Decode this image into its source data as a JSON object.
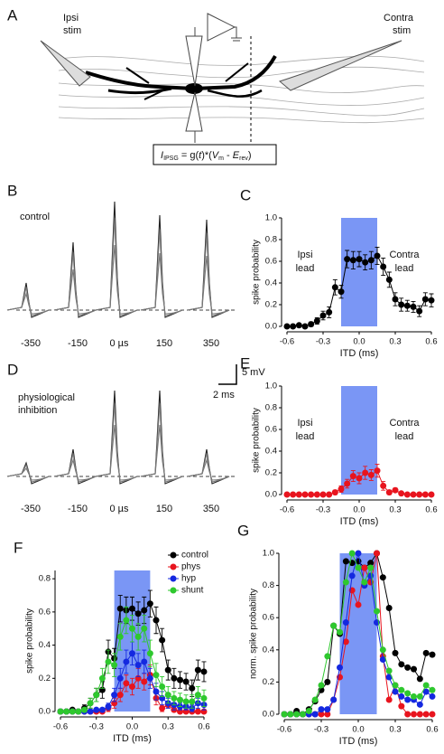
{
  "panel_a": {
    "label": "A",
    "ipsi": [
      "Ipsi",
      "stim"
    ],
    "contra": [
      "Contra",
      "stim"
    ],
    "formula": [
      "I",
      "IPSG",
      " = g(",
      "t",
      ")*(",
      "V",
      "m",
      " - ",
      "E",
      "rev",
      ")"
    ]
  },
  "panel_b": {
    "label": "B",
    "condition": [
      "control"
    ],
    "itd_labels": [
      "-350",
      "-150",
      "0 µs",
      "150",
      "350"
    ]
  },
  "panel_d": {
    "label": "D",
    "condition": [
      "physiological",
      "inhibition"
    ],
    "itd_labels": [
      "-350",
      "-150",
      "0 µs",
      "150",
      "350"
    ],
    "scale_bar": [
      "5 mV",
      "2 ms"
    ]
  },
  "chart_data": [
    {
      "type": "line",
      "label": "C",
      "xlabel": "ITD (ms)",
      "ylabel": "spike probability",
      "annotations": [
        "Ipsi",
        "lead",
        "Contra",
        "lead"
      ],
      "x": [
        -0.6,
        -0.55,
        -0.5,
        -0.45,
        -0.4,
        -0.35,
        -0.3,
        -0.25,
        -0.2,
        -0.15,
        -0.1,
        -0.05,
        0,
        0.05,
        0.1,
        0.15,
        0.2,
        0.25,
        0.3,
        0.35,
        0.4,
        0.45,
        0.5,
        0.55,
        0.6
      ],
      "shaded_region": {
        "x": [
          -0.15,
          0.15
        ],
        "color": "#7a96f5"
      },
      "series": [
        {
          "color": "#000000",
          "values": [
            0,
            0,
            0.01,
            0,
            0.02,
            0.05,
            0.1,
            0.13,
            0.36,
            0.32,
            0.62,
            0.61,
            0.62,
            0.59,
            0.61,
            0.65,
            0.55,
            0.43,
            0.25,
            0.2,
            0.19,
            0.18,
            0.14,
            0.25,
            0.24
          ],
          "errors": [
            0,
            0,
            0.01,
            0,
            0.02,
            0.03,
            0.04,
            0.05,
            0.07,
            0.06,
            0.08,
            0.08,
            0.07,
            0.07,
            0.08,
            0.08,
            0.08,
            0.07,
            0.06,
            0.06,
            0.05,
            0.05,
            0.05,
            0.06,
            0.06
          ]
        }
      ],
      "xlim": [
        -0.6,
        0.6
      ],
      "ylim": [
        0,
        1
      ],
      "xticks": [
        -0.6,
        -0.3,
        {
          "value": 0,
          "label": "0.0"
        },
        0.3,
        0.6
      ],
      "yticks": [
        {
          "value": 0,
          "label": "0.0"
        },
        0.2,
        0.4,
        0.6,
        0.8,
        {
          "value": 1,
          "label": "1.0"
        }
      ]
    },
    {
      "type": "line",
      "label": "E",
      "xlabel": "ITD (ms)",
      "ylabel": "spike probability",
      "annotations": [
        "Ipsi",
        "lead",
        "Contra",
        "lead"
      ],
      "x": [
        -0.6,
        -0.55,
        -0.5,
        -0.45,
        -0.4,
        -0.35,
        -0.3,
        -0.25,
        -0.2,
        -0.15,
        -0.1,
        -0.05,
        0,
        0.05,
        0.1,
        0.15,
        0.2,
        0.25,
        0.3,
        0.35,
        0.4,
        0.45,
        0.5,
        0.55,
        0.6
      ],
      "shaded_region": {
        "x": [
          -0.15,
          0.15
        ],
        "color": "#7a96f5"
      },
      "series": [
        {
          "color": "#e8141e",
          "values": [
            0,
            0,
            0,
            0,
            0,
            0,
            0,
            0,
            0.02,
            0.05,
            0.1,
            0.17,
            0.15,
            0.2,
            0.18,
            0.22,
            0.08,
            0.02,
            0.04,
            0.01,
            0,
            0,
            0,
            0,
            0
          ],
          "errors": [
            0,
            0,
            0,
            0,
            0,
            0,
            0,
            0,
            0.02,
            0.03,
            0.04,
            0.05,
            0.05,
            0.06,
            0.05,
            0.06,
            0.04,
            0.02,
            0.02,
            0.01,
            0,
            0,
            0,
            0,
            0
          ]
        }
      ],
      "xlim": [
        -0.6,
        0.6
      ],
      "ylim": [
        0,
        1
      ],
      "xticks": [
        -0.6,
        -0.3,
        {
          "value": 0,
          "label": "0.0"
        },
        0.3,
        0.6
      ],
      "yticks": [
        {
          "value": 0,
          "label": "0.0"
        },
        0.2,
        0.4,
        0.6,
        0.8,
        {
          "value": 1,
          "label": "1.0"
        }
      ]
    },
    {
      "type": "line",
      "label": "F",
      "xlabel": "ITD (ms)",
      "ylabel": "spike probability",
      "legend": "upper right",
      "x": [
        -0.6,
        -0.55,
        -0.5,
        -0.45,
        -0.4,
        -0.35,
        -0.3,
        -0.25,
        -0.2,
        -0.15,
        -0.1,
        -0.05,
        0,
        0.05,
        0.1,
        0.15,
        0.2,
        0.25,
        0.3,
        0.35,
        0.4,
        0.45,
        0.5,
        0.55,
        0.6
      ],
      "shaded_region": {
        "x": [
          -0.15,
          0.15
        ],
        "color": "#7a96f5"
      },
      "series": [
        {
          "name": "control",
          "color": "#000000",
          "values": [
            0,
            0,
            0.01,
            0,
            0.02,
            0.05,
            0.1,
            0.13,
            0.36,
            0.32,
            0.62,
            0.61,
            0.62,
            0.59,
            0.61,
            0.65,
            0.55,
            0.43,
            0.25,
            0.2,
            0.19,
            0.18,
            0.14,
            0.25,
            0.24
          ],
          "errors": [
            0,
            0,
            0.01,
            0,
            0.02,
            0.03,
            0.04,
            0.05,
            0.07,
            0.06,
            0.08,
            0.08,
            0.07,
            0.07,
            0.08,
            0.08,
            0.08,
            0.07,
            0.06,
            0.06,
            0.05,
            0.05,
            0.05,
            0.06,
            0.06
          ]
        },
        {
          "name": "phys",
          "color": "#e8141e",
          "values": [
            0,
            0,
            0,
            0,
            0,
            0,
            0,
            0,
            0.02,
            0.05,
            0.1,
            0.17,
            0.15,
            0.2,
            0.18,
            0.22,
            0.08,
            0.02,
            0.04,
            0.01,
            0,
            0,
            0,
            0,
            0
          ],
          "errors": [
            0,
            0,
            0,
            0,
            0,
            0,
            0,
            0,
            0.02,
            0.03,
            0.04,
            0.05,
            0.05,
            0.06,
            0.05,
            0.06,
            0.04,
            0.02,
            0.02,
            0.01,
            0,
            0,
            0,
            0,
            0
          ]
        },
        {
          "name": "hyp",
          "color": "#1428e0",
          "values": [
            0,
            0,
            0,
            0,
            0,
            0,
            0.01,
            0.01,
            0.03,
            0.1,
            0.2,
            0.3,
            0.35,
            0.28,
            0.3,
            0.2,
            0.12,
            0.08,
            0.05,
            0.04,
            0.03,
            0.03,
            0.02,
            0.05,
            0.04
          ],
          "errors": [
            0,
            0,
            0,
            0,
            0,
            0,
            0.01,
            0.01,
            0.02,
            0.04,
            0.06,
            0.07,
            0.07,
            0.07,
            0.07,
            0.06,
            0.05,
            0.04,
            0.03,
            0.03,
            0.02,
            0.02,
            0.02,
            0.03,
            0.03
          ]
        },
        {
          "name": "shunt",
          "color": "#2ec82e",
          "values": [
            0,
            0,
            0,
            0,
            0.01,
            0.05,
            0.1,
            0.2,
            0.3,
            0.28,
            0.45,
            0.55,
            0.5,
            0.45,
            0.5,
            0.35,
            0.22,
            0.15,
            0.1,
            0.08,
            0.07,
            0.06,
            0.06,
            0.1,
            0.08
          ],
          "errors": [
            0,
            0,
            0,
            0,
            0.01,
            0.03,
            0.04,
            0.06,
            0.07,
            0.07,
            0.08,
            0.08,
            0.08,
            0.08,
            0.08,
            0.08,
            0.07,
            0.06,
            0.05,
            0.04,
            0.04,
            0.04,
            0.04,
            0.05,
            0.05
          ]
        }
      ],
      "xlim": [
        -0.6,
        0.6
      ],
      "ylim": [
        0,
        0.85
      ],
      "xticks": [
        -0.6,
        -0.3,
        {
          "value": 0,
          "label": "0.0"
        },
        0.3,
        0.6
      ],
      "yticks": [
        {
          "value": 0,
          "label": "0.0"
        },
        0.2,
        0.4,
        0.6,
        0.8
      ]
    },
    {
      "type": "line",
      "label": "G",
      "xlabel": "ITD (ms)",
      "ylabel": "norm. spike probability",
      "x": [
        -0.6,
        -0.55,
        -0.5,
        -0.45,
        -0.4,
        -0.35,
        -0.3,
        -0.25,
        -0.2,
        -0.15,
        -0.1,
        -0.05,
        0,
        0.05,
        0.1,
        0.15,
        0.2,
        0.25,
        0.3,
        0.35,
        0.4,
        0.45,
        0.5,
        0.55,
        0.6
      ],
      "shaded_region": {
        "x": [
          -0.15,
          0.15
        ],
        "color": "#7a96f5"
      },
      "series": [
        {
          "color": "#000000",
          "values": [
            0,
            0,
            0.02,
            0,
            0.03,
            0.08,
            0.15,
            0.2,
            0.55,
            0.5,
            0.95,
            0.94,
            0.95,
            0.91,
            0.94,
            1.0,
            0.85,
            0.66,
            0.38,
            0.31,
            0.29,
            0.28,
            0.22,
            0.38,
            0.37
          ]
        },
        {
          "color": "#e8141e",
          "values": [
            0,
            0,
            0,
            0,
            0,
            0,
            0,
            0,
            0.09,
            0.23,
            0.45,
            0.77,
            0.68,
            0.91,
            0.82,
            1.0,
            0.36,
            0.09,
            0.18,
            0.05,
            0,
            0,
            0,
            0,
            0
          ]
        },
        {
          "color": "#1428e0",
          "values": [
            0,
            0,
            0,
            0,
            0,
            0,
            0.03,
            0.03,
            0.09,
            0.29,
            0.57,
            0.86,
            1.0,
            0.8,
            0.86,
            0.57,
            0.34,
            0.23,
            0.14,
            0.11,
            0.09,
            0.09,
            0.06,
            0.14,
            0.11
          ]
        },
        {
          "color": "#2ec82e",
          "values": [
            0,
            0,
            0,
            0,
            0.02,
            0.09,
            0.18,
            0.36,
            0.55,
            0.51,
            0.82,
            1.0,
            0.91,
            0.82,
            0.91,
            0.64,
            0.4,
            0.27,
            0.18,
            0.15,
            0.13,
            0.11,
            0.11,
            0.18,
            0.15
          ]
        }
      ],
      "xlim": [
        -0.6,
        0.6
      ],
      "ylim": [
        0,
        1
      ],
      "xticks": [
        -0.6,
        -0.3,
        {
          "value": 0,
          "label": "0.0"
        },
        0.3,
        0.6
      ],
      "yticks": [
        {
          "value": 0,
          "label": "0.0"
        },
        0.2,
        0.4,
        0.6,
        0.8,
        {
          "value": 1,
          "label": "1.0"
        }
      ]
    }
  ]
}
